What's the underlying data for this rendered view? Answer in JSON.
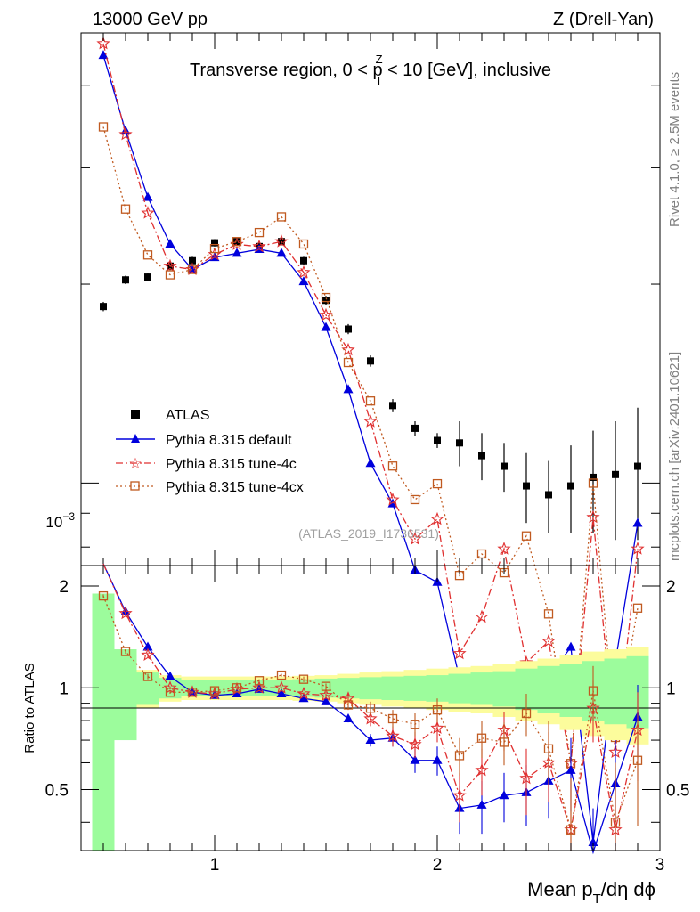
{
  "header": {
    "left": "13000 GeV pp",
    "right": "Z (Drell-Yan)"
  },
  "side_labels": {
    "rivet": "Rivet 4.1.0, ≥ 2.5M events",
    "mcplots": "mcplots.cern.ch [arXiv:2401.10621]"
  },
  "chart_data": {
    "type": "line",
    "title": "Transverse region, 0 < p_T^Z < 10 [GeV], inclusive",
    "title_parts": {
      "pre": "Transverse region, 0 < p",
      "sub": "T",
      "sup": "Z",
      "post": " < 10 [GeV], inclusive"
    },
    "analysis_id": "(ATLAS_2019_I1736531)",
    "xlabel": "Mean p_T/dη dϕ",
    "xlabel_parts": {
      "pre": "Mean p",
      "sub": "T",
      "post": "/dη dϕ"
    },
    "ratio_ylabel": "Ratio to ATLAS",
    "xlim": [
      0.4,
      3.0
    ],
    "main_ylim": [
      0.00075,
      0.0048
    ],
    "main_yscale": "log",
    "main_ytick_label": "10^-3",
    "ratio_ylim": [
      0.33,
      2.3
    ],
    "x_ticks": [
      1,
      2,
      3
    ],
    "ratio_ticks": [
      0.5,
      1,
      2
    ],
    "x": [
      0.5,
      0.6,
      0.7,
      0.8,
      0.9,
      1.0,
      1.1,
      1.2,
      1.3,
      1.4,
      1.5,
      1.6,
      1.7,
      1.8,
      1.9,
      2.0,
      2.1,
      2.2,
      2.3,
      2.4,
      2.5,
      2.6,
      2.7,
      2.8,
      2.9
    ],
    "data": {
      "name": "ATLAS",
      "values": [
        0.00185,
        0.00203,
        0.00205,
        0.00213,
        0.00217,
        0.00231,
        0.00232,
        0.00228,
        0.00232,
        0.00217,
        0.00189,
        0.00171,
        0.00153,
        0.00131,
        0.00121,
        0.00116,
        0.00115,
        0.0011,
        0.00106,
        0.00099,
        0.00096,
        0.00099,
        0.00102,
        0.00103,
        0.00106
      ],
      "errors": [
        1e-05,
        1e-05,
        1e-05,
        1e-05,
        1e-05,
        1e-05,
        1e-05,
        1e-05,
        1e-05,
        1e-05,
        1e-05,
        1e-05,
        1e-05,
        1e-05,
        1e-05,
        1e-05,
        3e-05,
        3e-05,
        3e-05,
        4e-05,
        4e-05,
        5e-05,
        6e-05,
        7e-05,
        8e-05
      ],
      "band_stat_inner": [
        [
          0.0,
          1.0
        ],
        [
          0.3,
          1.0
        ],
        [
          0.11,
          1.0
        ],
        [
          0.07,
          1.0
        ],
        [
          0.055,
          1.0
        ],
        [
          0.055,
          1.0
        ],
        [
          0.055,
          1.0
        ],
        [
          0.055,
          1.0
        ],
        [
          0.055,
          1.0
        ],
        [
          0.06,
          1.0
        ],
        [
          0.065,
          1.0
        ],
        [
          0.07,
          1.0
        ],
        [
          0.075,
          1.0
        ],
        [
          0.08,
          1.0
        ],
        [
          0.085,
          1.0
        ],
        [
          0.09,
          1.0
        ],
        [
          0.1,
          1.0
        ],
        [
          0.11,
          1.0
        ],
        [
          0.12,
          1.0
        ],
        [
          0.14,
          1.0
        ],
        [
          0.16,
          1.0
        ],
        [
          0.18,
          1.0
        ],
        [
          0.2,
          1.0
        ],
        [
          0.22,
          1.0
        ],
        [
          0.24,
          1.0
        ]
      ],
      "band_total": [
        0.62,
        0.24,
        0.13,
        0.09,
        0.08,
        0.08,
        0.08,
        0.08,
        0.08,
        0.085,
        0.09,
        0.1,
        0.11,
        0.12,
        0.13,
        0.14,
        0.15,
        0.16,
        0.18,
        0.2,
        0.22,
        0.25,
        0.28,
        0.3,
        0.32
      ]
    },
    "series": [
      {
        "name": "Pythia 8.315 default",
        "color": "#0000dd",
        "marker": "triangle",
        "dash": "",
        "ratio": [
          2.4,
          1.68,
          1.32,
          1.08,
          0.97,
          0.95,
          0.96,
          0.99,
          0.96,
          0.93,
          0.91,
          0.81,
          0.7,
          0.71,
          0.61,
          0.61,
          0.44,
          0.45,
          0.48,
          0.49,
          0.53,
          0.57,
          0.28,
          0.52,
          0.82
        ],
        "ratio_err": [
          0.02,
          0.02,
          0.02,
          0.01,
          0.01,
          0.01,
          0.01,
          0.01,
          0.01,
          0.01,
          0.01,
          0.02,
          0.03,
          0.04,
          0.05,
          0.06,
          0.07,
          0.08,
          0.08,
          0.1,
          0.12,
          0.14,
          0.16,
          0.18,
          0.2
        ]
      },
      {
        "name": "Pythia 8.315 tune-4c",
        "color": "#e03030",
        "marker": "star",
        "dash": "8,3,2,3",
        "ratio": [
          2.5,
          1.66,
          1.25,
          1.0,
          0.97,
          0.96,
          0.99,
          1.0,
          1.0,
          0.96,
          0.95,
          0.93,
          0.81,
          0.72,
          0.68,
          0.76,
          0.48,
          0.57,
          0.75,
          0.54,
          0.6,
          0.38,
          0.87,
          0.38,
          0.75
        ],
        "ratio_err": [
          0.02,
          0.02,
          0.02,
          0.01,
          0.01,
          0.01,
          0.01,
          0.01,
          0.01,
          0.01,
          0.02,
          0.03,
          0.04,
          0.05,
          0.06,
          0.07,
          0.08,
          0.09,
          0.1,
          0.12,
          0.14,
          0.16,
          0.18,
          0.2,
          0.22
        ]
      },
      {
        "name": "Pythia 8.315 tune-4cx",
        "color": "#c05a20",
        "marker": "square",
        "dash": "2,3",
        "ratio": [
          1.87,
          1.28,
          1.08,
          0.97,
          0.97,
          0.98,
          1.0,
          1.05,
          1.09,
          1.06,
          1.01,
          0.89,
          0.87,
          0.81,
          0.78,
          0.86,
          0.63,
          0.71,
          0.69,
          0.84,
          0.66,
          0.38,
          0.98,
          0.4,
          0.61
        ],
        "ratio_err": [
          0.02,
          0.02,
          0.02,
          0.01,
          0.01,
          0.01,
          0.01,
          0.01,
          0.01,
          0.02,
          0.02,
          0.03,
          0.04,
          0.05,
          0.06,
          0.07,
          0.08,
          0.09,
          0.1,
          0.12,
          0.14,
          0.16,
          0.18,
          0.2,
          0.22
        ]
      }
    ],
    "colors": {
      "data": "#000000",
      "band_inner": "#9cfc9c",
      "band_outer": "#fcfc9c",
      "axis": "#000000",
      "side_text": "#808080",
      "analysis_text": "#a0a0a0"
    }
  }
}
